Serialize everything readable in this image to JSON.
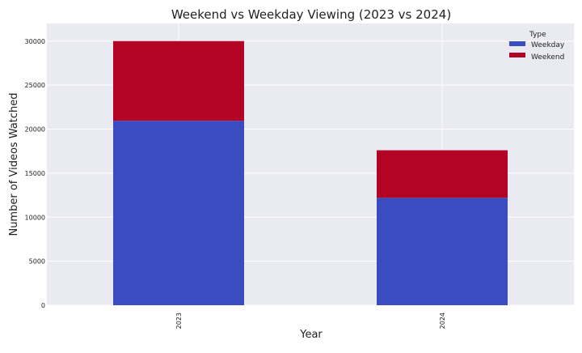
{
  "chart_data": {
    "type": "bar",
    "stacked": true,
    "title": "Weekend vs Weekday Viewing (2023 vs 2024)",
    "xlabel": "Year",
    "ylabel": "Number of Videos Watched",
    "categories": [
      "2023",
      "2024"
    ],
    "series": [
      {
        "name": "Weekday",
        "values": [
          20950,
          12200
        ],
        "color": "#3b4cc0"
      },
      {
        "name": "Weekend",
        "values": [
          9050,
          5400
        ],
        "color": "#b40426"
      }
    ],
    "ylim": [
      0,
      32000
    ],
    "yticks": [
      0,
      5000,
      10000,
      15000,
      20000,
      25000,
      30000
    ],
    "grid": true,
    "legend_title": "Type",
    "legend_placement": "top-right",
    "background_color": "#eaeaf2"
  }
}
